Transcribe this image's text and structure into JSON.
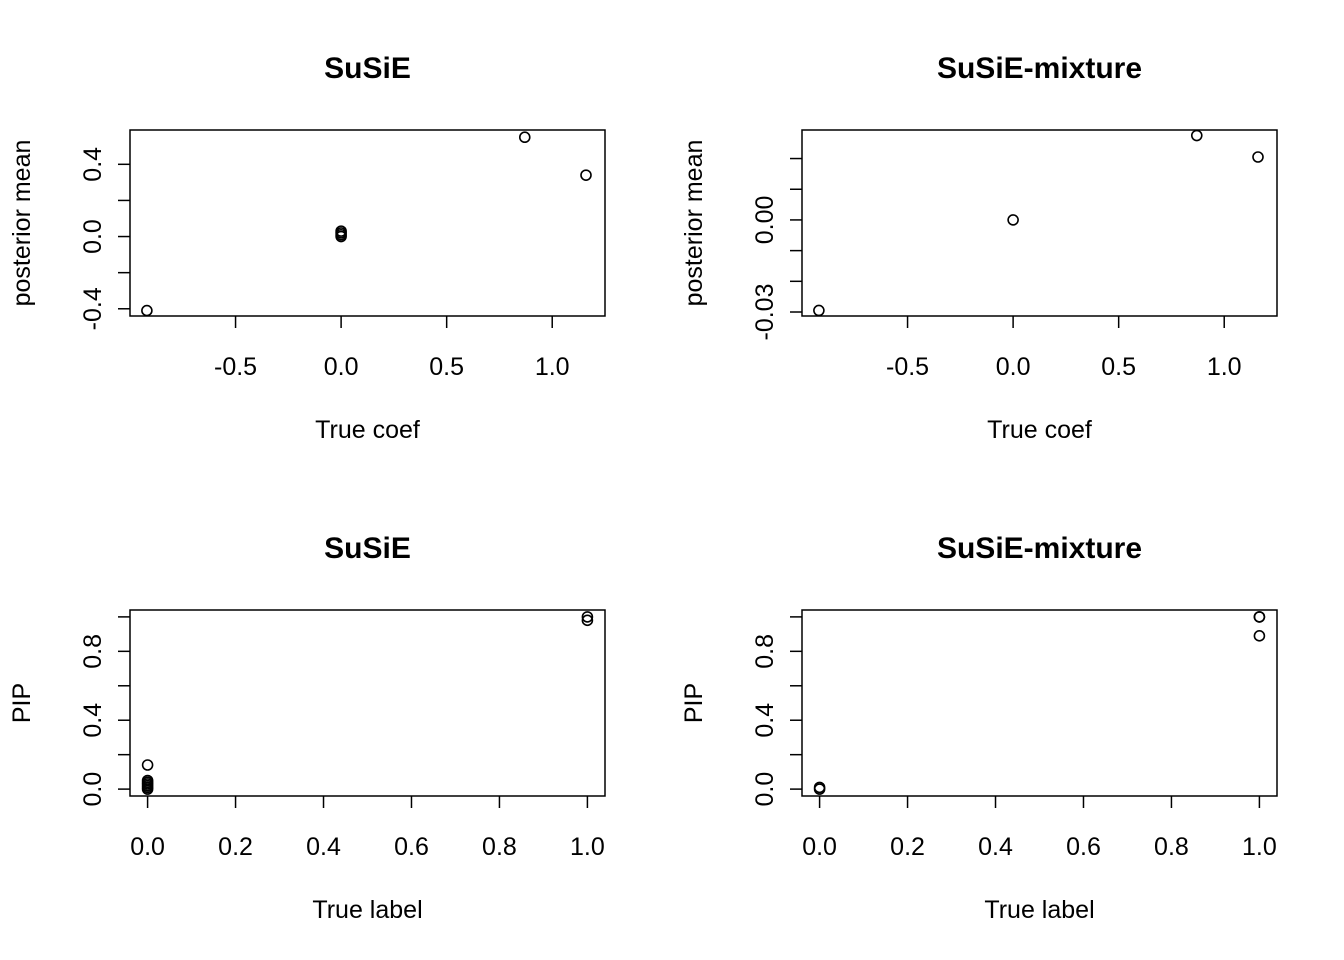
{
  "chart_data": [
    {
      "type": "scatter",
      "title": "SuSiE",
      "xlabel": "True coef",
      "ylabel": "posterior mean",
      "xlim": [
        -1.0,
        1.25
      ],
      "ylim": [
        -0.44,
        0.59
      ],
      "xticks": [
        -0.5,
        0.0,
        0.5,
        1.0
      ],
      "xtick_labels": [
        "-0.5",
        "0.0",
        "0.5",
        "1.0"
      ],
      "yticks": [
        -0.4,
        -0.2,
        0.0,
        0.2,
        0.4
      ],
      "ytick_labels": [
        "-0.4",
        "",
        "0.0",
        "",
        "0.4"
      ],
      "x": [
        -0.92,
        0.0,
        0.0,
        0.0,
        0.0,
        0.87,
        1.16
      ],
      "y": [
        -0.41,
        0.0,
        0.01,
        0.02,
        0.03,
        0.55,
        0.34
      ]
    },
    {
      "type": "scatter",
      "title": "SuSiE-mixture",
      "xlabel": "True coef",
      "ylabel": "posterior mean",
      "xlim": [
        -1.0,
        1.25
      ],
      "ylim": [
        -0.0313,
        0.0293
      ],
      "xticks": [
        -0.5,
        0.0,
        0.5,
        1.0
      ],
      "xtick_labels": [
        "-0.5",
        "0.0",
        "0.5",
        "1.0"
      ],
      "yticks": [
        -0.03,
        -0.02,
        -0.01,
        0.0,
        0.01,
        0.02
      ],
      "ytick_labels": [
        "-0.03",
        "",
        "",
        "0.00",
        "",
        ""
      ],
      "x": [
        -0.92,
        0.0,
        0.87,
        1.16
      ],
      "y": [
        -0.0295,
        0.0,
        0.0275,
        0.0205
      ]
    },
    {
      "type": "scatter",
      "title": "SuSiE",
      "xlabel": "True label",
      "ylabel": "PIP",
      "xlim": [
        -0.04,
        1.04
      ],
      "ylim": [
        -0.04,
        1.04
      ],
      "xticks": [
        0.0,
        0.2,
        0.4,
        0.6,
        0.8,
        1.0
      ],
      "xtick_labels": [
        "0.0",
        "0.2",
        "0.4",
        "0.6",
        "0.8",
        "1.0"
      ],
      "yticks": [
        0.0,
        0.2,
        0.4,
        0.6,
        0.8,
        1.0
      ],
      "ytick_labels": [
        "0.0",
        "",
        "0.4",
        "",
        "0.8",
        ""
      ],
      "x": [
        0,
        0,
        0,
        0,
        0,
        0,
        0,
        1,
        1
      ],
      "y": [
        0.0,
        0.01,
        0.02,
        0.03,
        0.04,
        0.05,
        0.14,
        0.98,
        1.0
      ]
    },
    {
      "type": "scatter",
      "title": "SuSiE-mixture",
      "xlabel": "True label",
      "ylabel": "PIP",
      "xlim": [
        -0.04,
        1.04
      ],
      "ylim": [
        -0.04,
        1.04
      ],
      "xticks": [
        0.0,
        0.2,
        0.4,
        0.6,
        0.8,
        1.0
      ],
      "xtick_labels": [
        "0.0",
        "0.2",
        "0.4",
        "0.6",
        "0.8",
        "1.0"
      ],
      "yticks": [
        0.0,
        0.2,
        0.4,
        0.6,
        0.8,
        1.0
      ],
      "ytick_labels": [
        "0.0",
        "",
        "0.4",
        "",
        "0.8",
        ""
      ],
      "x": [
        0,
        0,
        1,
        1,
        1
      ],
      "y": [
        0.0,
        0.01,
        0.89,
        1.0,
        1.0
      ]
    }
  ]
}
